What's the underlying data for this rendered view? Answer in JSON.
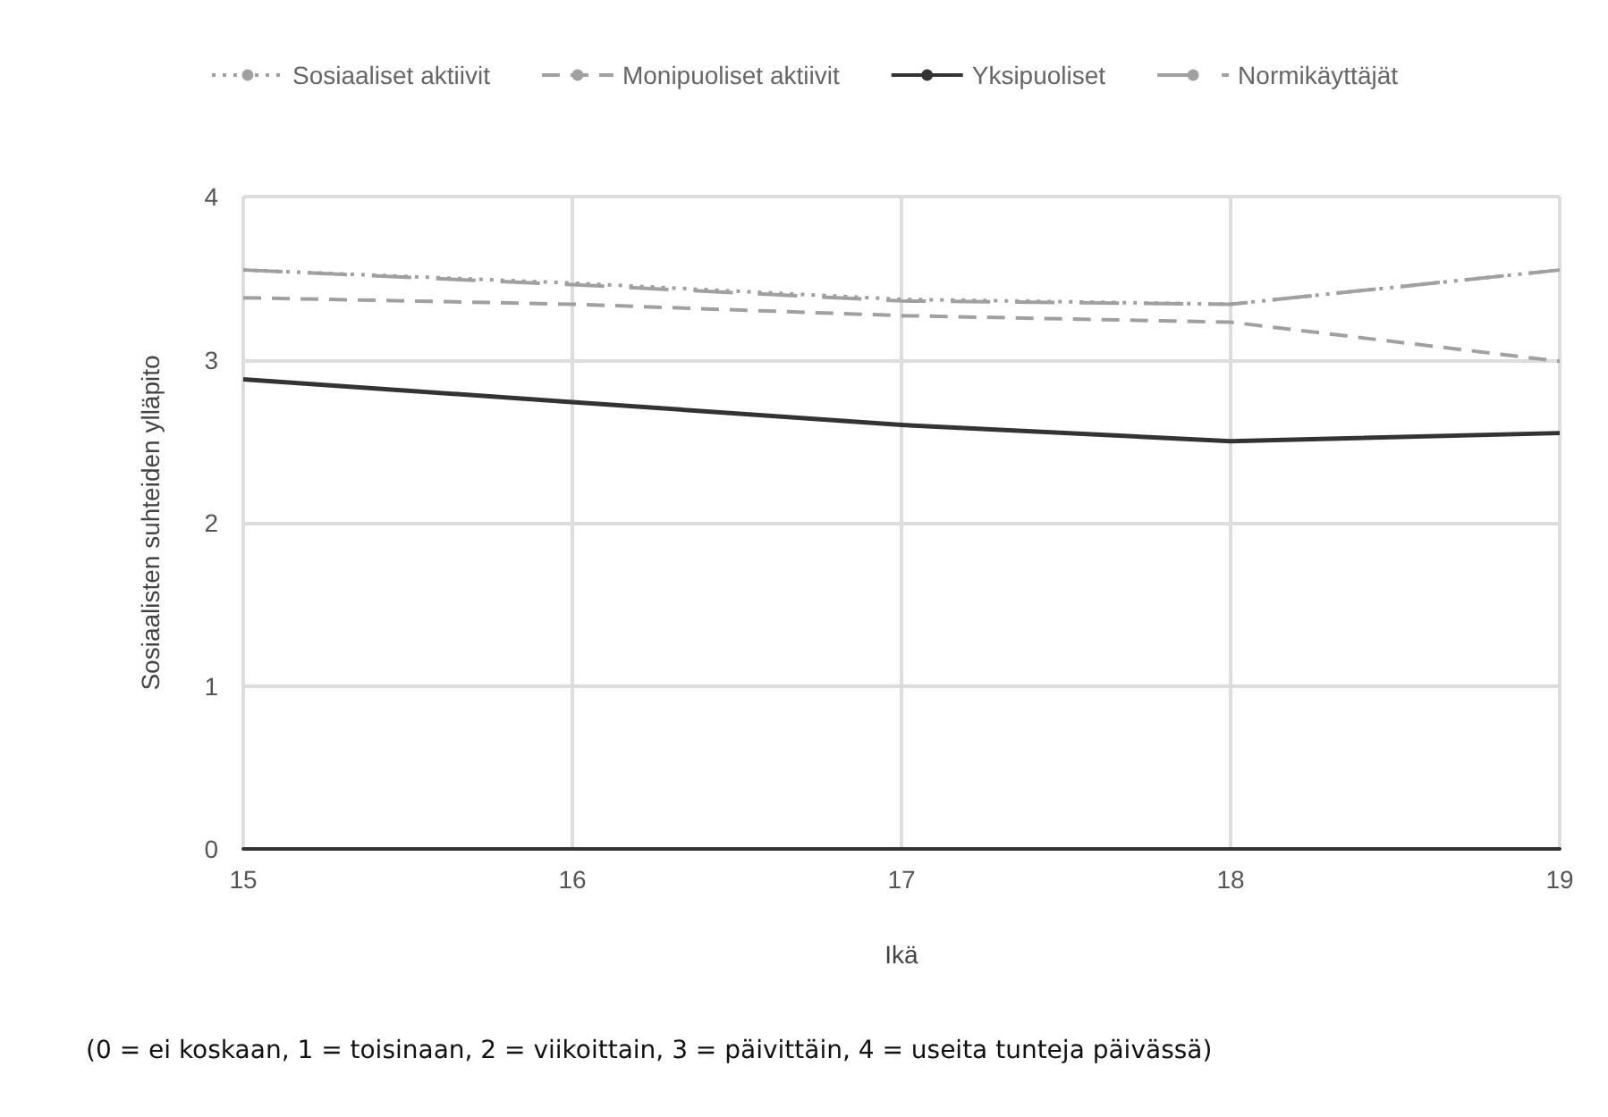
{
  "chart_data": {
    "type": "line",
    "xlabel": "Ikä",
    "ylabel": "Sosiaalisten suhteiden ylläpito",
    "x": [
      15,
      16,
      17,
      18,
      19
    ],
    "xlim": [
      15,
      19
    ],
    "xticks": [
      15,
      16,
      17,
      18,
      19
    ],
    "ylim": [
      0,
      4
    ],
    "yticks": [
      0,
      1,
      2,
      3,
      4
    ],
    "grid": true,
    "legend": "top",
    "marker": "none",
    "series": [
      {
        "name": "Sosiaaliset aktiivit",
        "color": "#a0a0a0",
        "line_style": "dotted",
        "values": [
          3.55,
          3.47,
          3.37,
          3.34,
          3.55
        ]
      },
      {
        "name": "Monipuoliset aktiivit",
        "color": "#a0a0a0",
        "line_style": "dashed",
        "values": [
          3.38,
          3.34,
          3.27,
          3.23,
          2.99
        ]
      },
      {
        "name": "Yksipuoliset",
        "color": "#333333",
        "line_style": "solid",
        "values": [
          2.88,
          2.74,
          2.6,
          2.5,
          2.55
        ]
      },
      {
        "name": "Normikäyttäjät",
        "color": "#a0a0a0",
        "line_style": "longdash",
        "values": [
          3.55,
          3.46,
          3.36,
          3.34,
          3.55
        ]
      }
    ],
    "annotations": [
      "(0 = ei koskaan, 1 = toisinaan, 2 = viikoittain, 3 = päivittäin, 4 = useita tunteja päivässä)"
    ]
  }
}
